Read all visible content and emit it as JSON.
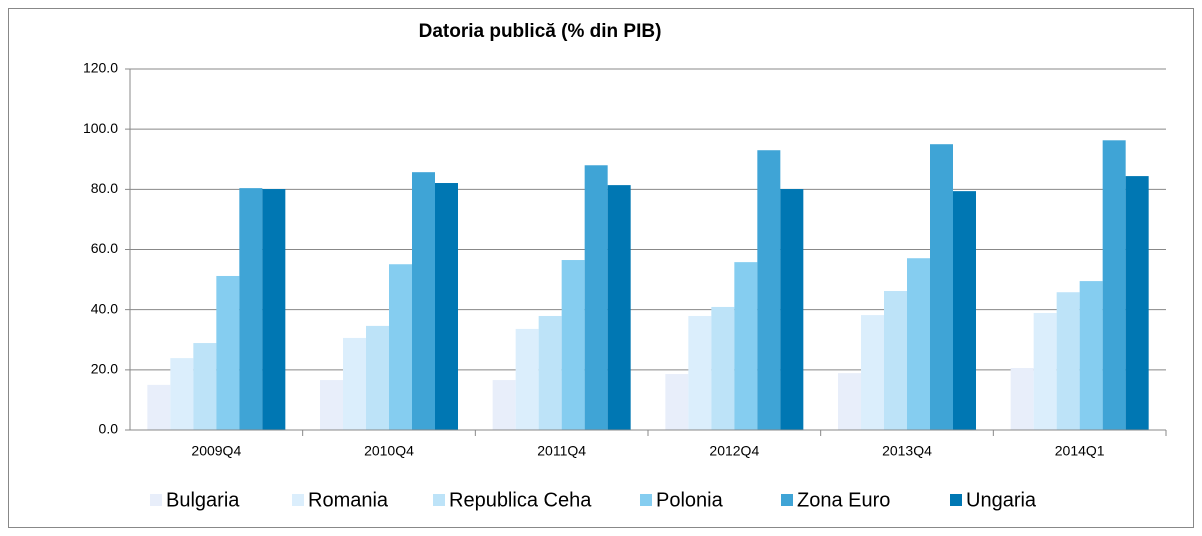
{
  "chart_data": {
    "type": "bar",
    "title": "Datoria publică (% din PIB)",
    "categories": [
      "2009Q4",
      "2010Q4",
      "2011Q4",
      "2012Q4",
      "2013Q4",
      "2014Q1"
    ],
    "series": [
      {
        "name": "Bulgaria",
        "color": "#e8eefa",
        "values": [
          15.0,
          16.6,
          16.6,
          18.6,
          18.9,
          20.6
        ]
      },
      {
        "name": "Romania",
        "color": "#dbeefc",
        "values": [
          23.9,
          30.6,
          33.6,
          37.9,
          38.2,
          38.9
        ]
      },
      {
        "name": "Republica Ceha",
        "color": "#bde3f8",
        "values": [
          28.9,
          34.6,
          37.9,
          40.9,
          46.2,
          45.8
        ]
      },
      {
        "name": "Polonia",
        "color": "#85cdf0",
        "values": [
          51.2,
          55.1,
          56.5,
          55.8,
          57.1,
          49.5
        ]
      },
      {
        "name": "Zona Euro",
        "color": "#3fa4d6",
        "values": [
          80.4,
          85.7,
          88.0,
          93.0,
          95.0,
          96.3
        ]
      },
      {
        "name": "Ungaria",
        "color": "#0077b3",
        "values": [
          80.1,
          82.1,
          81.4,
          80.1,
          79.4,
          84.4
        ]
      }
    ],
    "ylim": [
      0,
      120
    ],
    "yticks": [
      {
        "value": 0,
        "label": "0.0"
      },
      {
        "value": 20,
        "label": "20.0"
      },
      {
        "value": 40,
        "label": "40.0"
      },
      {
        "value": 60,
        "label": "60.0"
      },
      {
        "value": 80,
        "label": "80.0"
      },
      {
        "value": 100,
        "label": "100.0"
      },
      {
        "value": 120,
        "label": "120.0"
      }
    ],
    "grid": true,
    "legend": "bottom"
  }
}
